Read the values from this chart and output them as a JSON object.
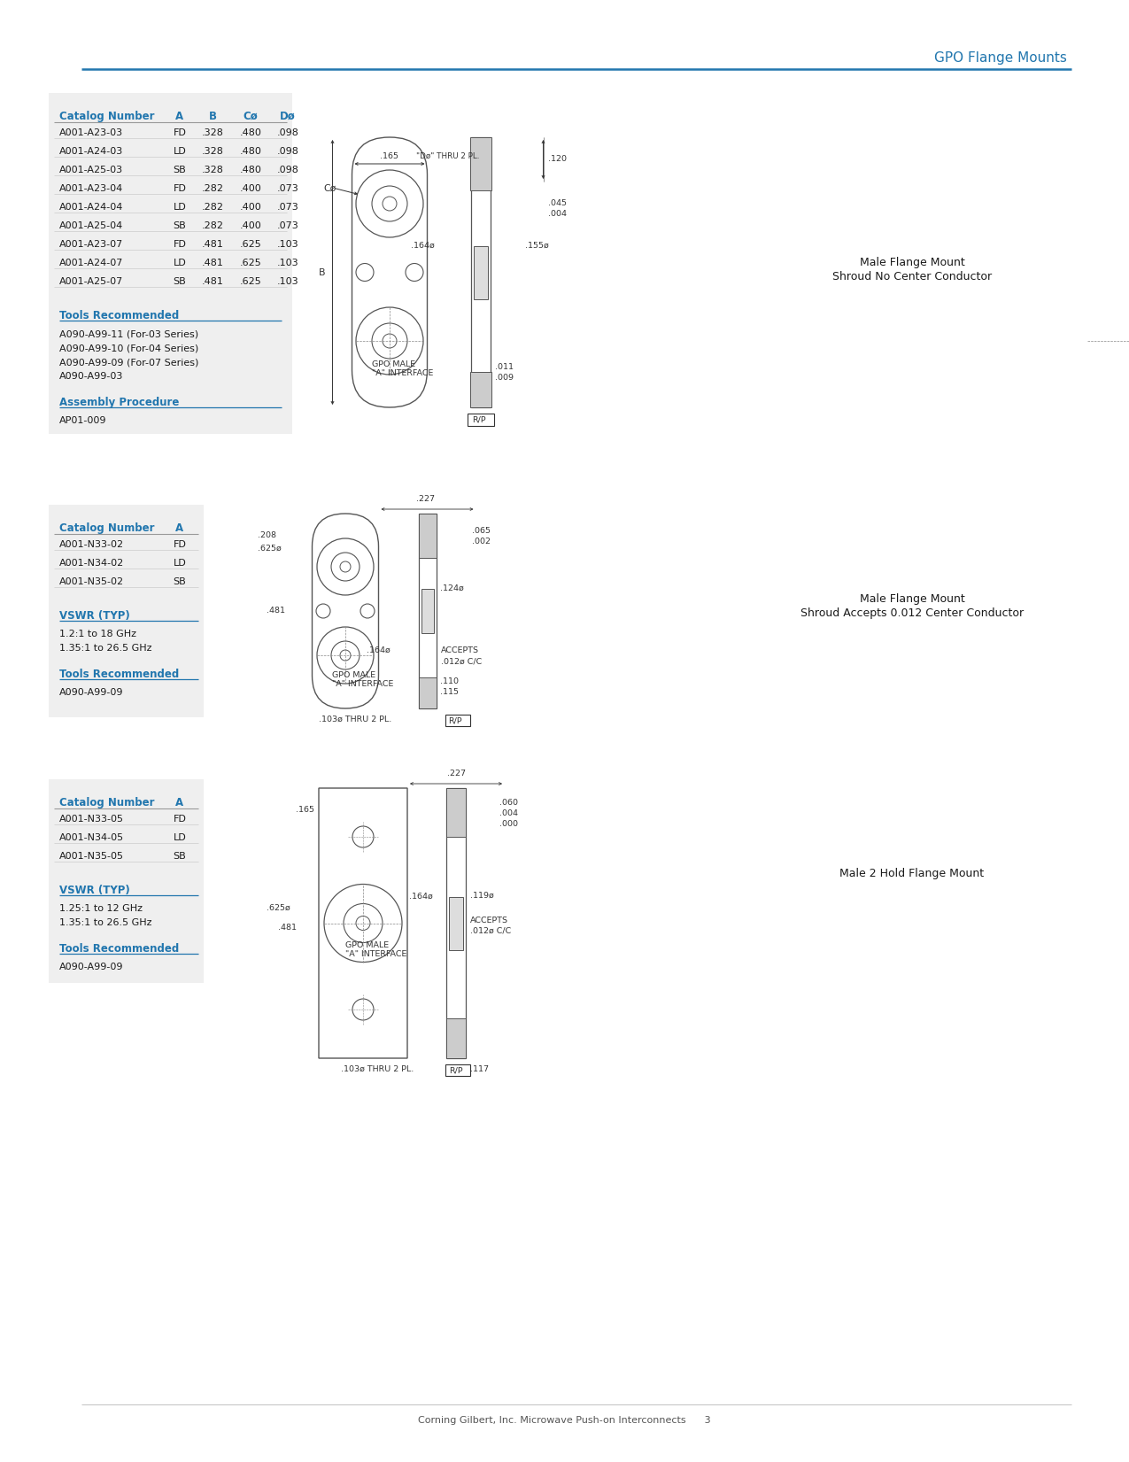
{
  "page_title": "GPO Flange Mounts",
  "title_color": "#2176ae",
  "line_color": "#2176ae",
  "background_color": "#ffffff",
  "section_bg_color": "#efefef",
  "header_color": "#2176ae",
  "text_color": "#1a1a1a",
  "ann_color": "#333333",
  "section1": {
    "table_headers": [
      "Catalog Number",
      "A",
      "B",
      "Cø",
      "Dø"
    ],
    "table_rows": [
      [
        "A001-A23-03",
        "FD",
        ".328",
        ".480",
        ".098"
      ],
      [
        "A001-A24-03",
        "LD",
        ".328",
        ".480",
        ".098"
      ],
      [
        "A001-A25-03",
        "SB",
        ".328",
        ".480",
        ".098"
      ],
      [
        "A001-A23-04",
        "FD",
        ".282",
        ".400",
        ".073"
      ],
      [
        "A001-A24-04",
        "LD",
        ".282",
        ".400",
        ".073"
      ],
      [
        "A001-A25-04",
        "SB",
        ".282",
        ".400",
        ".073"
      ],
      [
        "A001-A23-07",
        "FD",
        ".481",
        ".625",
        ".103"
      ],
      [
        "A001-A24-07",
        "LD",
        ".481",
        ".625",
        ".103"
      ],
      [
        "A001-A25-07",
        "SB",
        ".481",
        ".625",
        ".103"
      ]
    ],
    "tools_label": "Tools Recommended",
    "tools": [
      "A090-A99-11 (For-03 Series)",
      "A090-A99-10 (For-04 Series)",
      "A090-A99-09 (For-07 Series)",
      "A090-A99-03"
    ],
    "assembly_label": "Assembly Procedure",
    "assembly": [
      "AP01-009"
    ],
    "caption1": "Male Flange Mount",
    "caption2": "Shroud No Center Conductor"
  },
  "section2": {
    "table_headers": [
      "Catalog Number",
      "A"
    ],
    "table_rows": [
      [
        "A001-N33-02",
        "FD"
      ],
      [
        "A001-N34-02",
        "LD"
      ],
      [
        "A001-N35-02",
        "SB"
      ]
    ],
    "vswr_label": "VSWR (TYP)",
    "vswr": [
      "1.2:1 to 18 GHz",
      "1.35:1 to 26.5 GHz"
    ],
    "tools_label": "Tools Recommended",
    "tools": [
      "A090-A99-09"
    ],
    "caption1": "Male Flange Mount",
    "caption2": "Shroud Accepts 0.012 Center Conductor"
  },
  "section3": {
    "table_headers": [
      "Catalog Number",
      "A"
    ],
    "table_rows": [
      [
        "A001-N33-05",
        "FD"
      ],
      [
        "A001-N34-05",
        "LD"
      ],
      [
        "A001-N35-05",
        "SB"
      ]
    ],
    "vswr_label": "VSWR (TYP)",
    "vswr": [
      "1.25:1 to 12 GHz",
      "1.35:1 to 26.5 GHz"
    ],
    "tools_label": "Tools Recommended",
    "tools": [
      "A090-A99-09"
    ],
    "caption1": "Male 2 Hold Flange Mount",
    "caption2": ""
  },
  "footer": "Corning Gilbert, Inc. Microwave Push-on Interconnects      3"
}
